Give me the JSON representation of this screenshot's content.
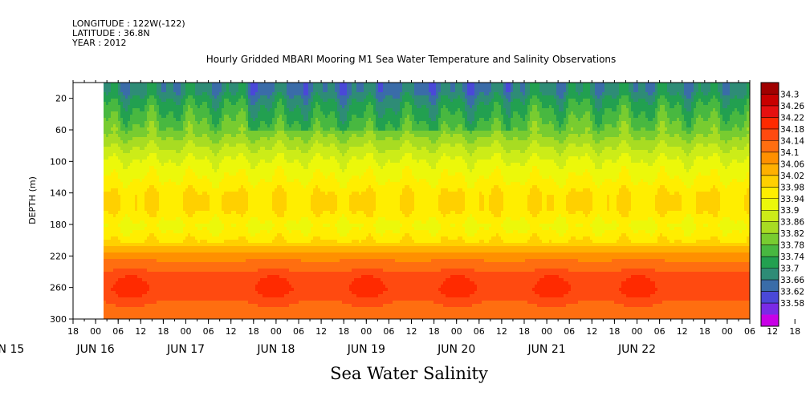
{
  "header": {
    "longitude": "LONGITUDE : 122W(-122)",
    "latitude": "LATITUDE : 36.8N",
    "year": "YEAR : 2012"
  },
  "title": "Hourly Gridded MBARI Mooring M1 Sea Water Temperature and Salinity Observations",
  "bottom_title": "Sea Water Salinity",
  "chart_data": {
    "type": "heatmap",
    "title": "Hourly Gridded MBARI Mooring M1 Sea Water Temperature and Salinity Observations",
    "xlabel": "",
    "ylabel": "DEPTH (m)",
    "variable": "Sea Water Salinity",
    "ylim": [
      300,
      0
    ],
    "y_ticks": [
      20,
      60,
      100,
      140,
      180,
      220,
      260,
      300
    ],
    "x_hour_ticks": [
      "18",
      "00",
      "06",
      "12",
      "18",
      "00",
      "06",
      "12",
      "18",
      "00",
      "06",
      "12",
      "18",
      "00",
      "06",
      "12",
      "18",
      "00",
      "06",
      "12",
      "18",
      "00",
      "06",
      "12",
      "18",
      "00",
      "06",
      "12",
      "18",
      "00",
      "06",
      "12",
      "18"
    ],
    "x_date_labels": [
      "JUN 15",
      "JUN 16",
      "JUN 17",
      "JUN 18",
      "JUN 19",
      "JUN 20",
      "JUN 21",
      "JUN 22"
    ],
    "data_start": "JUN 16 00",
    "colorbar_levels": [
      34.3,
      34.26,
      34.22,
      34.18,
      34.14,
      34.1,
      34.06,
      34.02,
      33.98,
      33.94,
      33.9,
      33.86,
      33.82,
      33.78,
      33.74,
      33.7,
      33.66,
      33.62,
      33.58
    ],
    "colorbar_colors": [
      "#a00000",
      "#c80000",
      "#e61010",
      "#ff2a00",
      "#ff4a10",
      "#ff6e10",
      "#ff9000",
      "#ffb000",
      "#ffd000",
      "#ffee00",
      "#ecf80a",
      "#ccec18",
      "#a8dc22",
      "#78cc30",
      "#48b840",
      "#22a050",
      "#2e8c76",
      "#3a6ca8",
      "#4a48d8",
      "#7a2ae6",
      "#c800e6"
    ],
    "depth_profile": [
      {
        "depth": 10,
        "salinity": 33.72
      },
      {
        "depth": 20,
        "salinity": 33.76
      },
      {
        "depth": 40,
        "salinity": 33.8
      },
      {
        "depth": 60,
        "salinity": 33.84
      },
      {
        "depth": 80,
        "salinity": 33.9
      },
      {
        "depth": 100,
        "salinity": 33.95
      },
      {
        "depth": 120,
        "salinity": 33.98
      },
      {
        "depth": 140,
        "salinity": 34.02
      },
      {
        "depth": 160,
        "salinity": 34.02
      },
      {
        "depth": 180,
        "salinity": 33.97
      },
      {
        "depth": 200,
        "salinity": 34.02
      },
      {
        "depth": 220,
        "salinity": 34.13
      },
      {
        "depth": 240,
        "salinity": 34.18
      },
      {
        "depth": 260,
        "salinity": 34.2
      },
      {
        "depth": 280,
        "salinity": 34.17
      },
      {
        "depth": 300,
        "salinity": 34.14
      }
    ],
    "haline_peak_times": [
      "JUN 16 09",
      "JUN 17 23",
      "JUN 19 00",
      "JUN 20 00",
      "JUN 21 01",
      "JUN 22 00"
    ]
  }
}
